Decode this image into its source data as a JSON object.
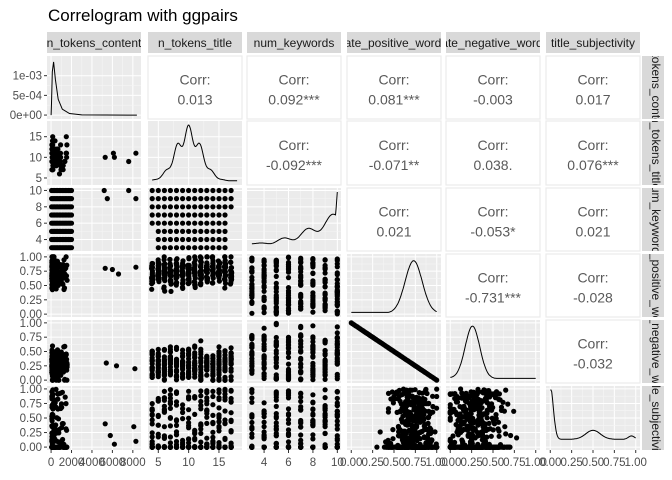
{
  "chart_data": {
    "type": "scatter",
    "title": "Correlogram with ggpairs",
    "variables": [
      "n_tokens_content",
      "n_tokens_title",
      "num_keywords",
      "global_rate_positive_words",
      "global_rate_negative_words",
      "title_subjectivity"
    ],
    "column_strip_labels": [
      "n_tokens_content",
      "n_tokens_title",
      "num_keywords",
      "rate_positive_words",
      "rate_negative_words",
      "title_subjectivity"
    ],
    "row_strip_labels": [
      "n_tokens_content",
      "n_tokens_title",
      "num_keywords",
      "rate_positive_words",
      "rate_negative_words",
      "title_subjectivity"
    ],
    "column_ticks": [
      {
        "labels": [
          "0",
          "2000",
          "4000",
          "6000",
          "8000"
        ],
        "values": [
          0,
          2000,
          4000,
          6000,
          8000
        ],
        "lim": [
          -400,
          8800
        ]
      },
      {
        "labels": [
          "5",
          "10",
          "15"
        ],
        "values": [
          5,
          10,
          15
        ],
        "lim": [
          3.3,
          18.8
        ]
      },
      {
        "labels": [
          "4",
          "6",
          "8",
          "10"
        ],
        "values": [
          4,
          6,
          8,
          10
        ],
        "lim": [
          2.6,
          10.3
        ]
      },
      {
        "labels": [
          "0.00",
          "0.25",
          "0.50",
          "0.75",
          "1.00"
        ],
        "values": [
          0,
          0.25,
          0.5,
          0.75,
          1.0
        ],
        "lim": [
          -0.05,
          1.05
        ]
      },
      {
        "labels": [
          "0.00",
          "0.25",
          "0.50",
          "0.75",
          "1.00"
        ],
        "values": [
          0,
          0.25,
          0.5,
          0.75,
          1.0
        ],
        "lim": [
          -0.05,
          1.05
        ]
      },
      {
        "labels": [
          "0.00",
          "0.25",
          "0.50",
          "0.75",
          "1.00"
        ],
        "values": [
          0,
          0.25,
          0.5,
          0.75,
          1.0
        ],
        "lim": [
          -0.05,
          1.05
        ]
      }
    ],
    "row_ticks": [
      {
        "labels": [
          "0e+00",
          "5e-04",
          "1e-03"
        ],
        "values": [
          0,
          0.0005,
          0.001
        ],
        "lim": [
          -0.0001,
          0.0015
        ]
      },
      {
        "labels": [
          "5",
          "10",
          "15"
        ],
        "values": [
          5,
          10,
          15
        ],
        "lim": [
          3.3,
          18.8
        ]
      },
      {
        "labels": [
          "4",
          "6",
          "8",
          "10"
        ],
        "values": [
          4,
          6,
          8,
          10
        ],
        "lim": [
          2.6,
          10.3
        ]
      },
      {
        "labels": [
          "0.00",
          "0.25",
          "0.50",
          "0.75",
          "1.00"
        ],
        "values": [
          0,
          0.25,
          0.5,
          0.75,
          1.0
        ],
        "lim": [
          -0.05,
          1.05
        ]
      },
      {
        "labels": [
          "0.00",
          "0.25",
          "0.50",
          "0.75",
          "1.00"
        ],
        "values": [
          0,
          0.25,
          0.5,
          0.75,
          1.0
        ],
        "lim": [
          -0.05,
          1.05
        ]
      },
      {
        "labels": [
          "0.00",
          "0.25",
          "0.50",
          "0.75",
          "1.00"
        ],
        "values": [
          0,
          0.25,
          0.5,
          0.75,
          1.0
        ],
        "lim": [
          -0.05,
          1.05
        ]
      }
    ],
    "correlations": [
      {
        "row": 0,
        "col": 1,
        "label": "Corr:",
        "value": "0.013"
      },
      {
        "row": 0,
        "col": 2,
        "label": "Corr:",
        "value": "0.092***"
      },
      {
        "row": 0,
        "col": 3,
        "label": "Corr:",
        "value": "0.081***"
      },
      {
        "row": 0,
        "col": 4,
        "label": "Corr:",
        "value": "-0.003"
      },
      {
        "row": 0,
        "col": 5,
        "label": "Corr:",
        "value": "0.017"
      },
      {
        "row": 1,
        "col": 2,
        "label": "Corr:",
        "value": "-0.092***"
      },
      {
        "row": 1,
        "col": 3,
        "label": "Corr:",
        "value": "-0.071**"
      },
      {
        "row": 1,
        "col": 4,
        "label": "Corr:",
        "value": "0.038."
      },
      {
        "row": 1,
        "col": 5,
        "label": "Corr:",
        "value": "0.076***"
      },
      {
        "row": 2,
        "col": 3,
        "label": "Corr:",
        "value": "0.021"
      },
      {
        "row": 2,
        "col": 4,
        "label": "Corr:",
        "value": "-0.053*"
      },
      {
        "row": 2,
        "col": 5,
        "label": "Corr:",
        "value": "0.021"
      },
      {
        "row": 3,
        "col": 4,
        "label": "Corr:",
        "value": "-0.731***"
      },
      {
        "row": 3,
        "col": 5,
        "label": "Corr:",
        "value": "-0.028"
      },
      {
        "row": 4,
        "col": 5,
        "label": "Corr:",
        "value": "-0.032"
      }
    ],
    "diagonal_density_peaks": [
      {
        "variable": "n_tokens_content",
        "peak_x": 250
      },
      {
        "variable": "n_tokens_title",
        "peak_x": 10
      },
      {
        "variable": "num_keywords",
        "peak_x": 10
      },
      {
        "variable": "global_rate_positive_words",
        "peak_x": 0.74
      },
      {
        "variable": "global_rate_negative_words",
        "peak_x": 0.26
      },
      {
        "variable": "title_subjectivity",
        "peak_x": 0.0
      }
    ]
  }
}
